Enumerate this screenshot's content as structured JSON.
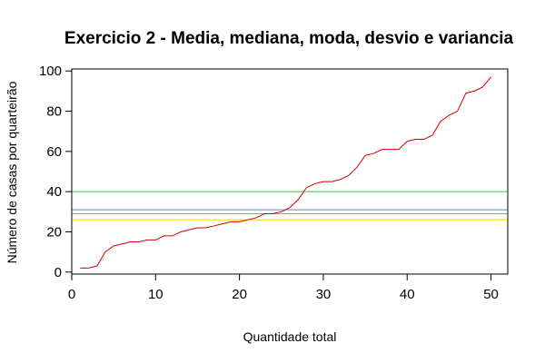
{
  "chart_data": {
    "type": "line",
    "title": "Exercicio 2 - Media, mediana, moda, desvio e variancia",
    "xlabel": "Quantidade total",
    "ylabel": "Número de casas por quarteirão",
    "xlim": [
      0,
      52
    ],
    "ylim": [
      -1,
      101
    ],
    "xticks": [
      0,
      10,
      20,
      30,
      40,
      50
    ],
    "yticks": [
      0,
      20,
      40,
      60,
      80,
      100
    ],
    "grid": false,
    "series": [
      {
        "color": "#cc0000",
        "x": [
          1,
          2,
          3,
          4,
          5,
          6,
          7,
          8,
          9,
          10,
          11,
          12,
          13,
          14,
          15,
          16,
          17,
          18,
          19,
          20,
          21,
          22,
          23,
          24,
          25,
          26,
          27,
          28,
          29,
          30,
          31,
          32,
          33,
          34,
          35,
          36,
          37,
          38,
          39,
          40,
          41,
          42,
          43,
          44,
          45,
          46,
          47,
          48,
          49,
          50
        ],
        "y": [
          2,
          2,
          3,
          10,
          13,
          14,
          15,
          15,
          16,
          16,
          18,
          18,
          20,
          21,
          22,
          22,
          23,
          24,
          25,
          25,
          26,
          27,
          29,
          29,
          30,
          32,
          36,
          42,
          44,
          45,
          45,
          46,
          48,
          52,
          58,
          59,
          61,
          61,
          61,
          65,
          66,
          66,
          68,
          75,
          78,
          80,
          89,
          90,
          92,
          97
        ]
      }
    ],
    "reference_lines": [
      {
        "color": "#2ecc40",
        "y": 40
      },
      {
        "color": "#4a86e8",
        "y": 31
      },
      {
        "color": "#6fa8dc",
        "y": 29
      },
      {
        "color": "#f5d300",
        "y": 26
      }
    ]
  }
}
